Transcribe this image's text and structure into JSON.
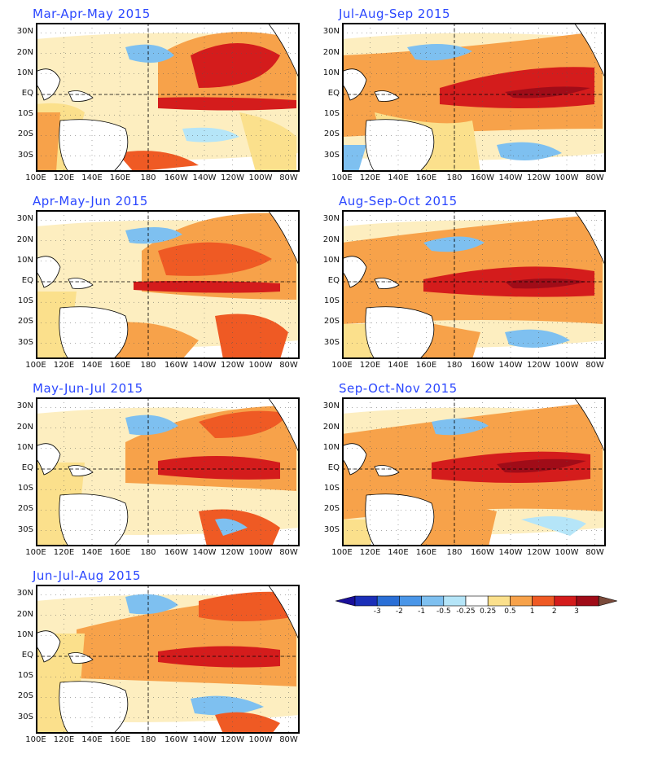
{
  "panels": [
    {
      "title": "Mar-Apr-May 2015"
    },
    {
      "title": "Jul-Aug-Sep 2015"
    },
    {
      "title": "Apr-May-Jun 2015"
    },
    {
      "title": "Aug-Sep-Oct 2015"
    },
    {
      "title": "May-Jun-Jul 2015"
    },
    {
      "title": "Sep-Oct-Nov 2015"
    },
    {
      "title": "Jun-Jul-Aug 2015"
    }
  ],
  "lat_labels": [
    "30N",
    "20N",
    "10N",
    "EQ",
    "10S",
    "20S",
    "30S"
  ],
  "lon_labels": [
    "100E",
    "120E",
    "140E",
    "160E",
    "180",
    "160W",
    "140W",
    "120W",
    "100W",
    "80W"
  ],
  "colorbar": {
    "labels": [
      "-3",
      "-2",
      "-1",
      "-0.5",
      "-0.25",
      "0.25",
      "0.5",
      "1",
      "2",
      "3"
    ],
    "colors": [
      "#1b2fb8",
      "#2a6fd6",
      "#4a96e8",
      "#7ec0f0",
      "#b5e5f8",
      "#ffffff",
      "#fbe08c",
      "#f7a24a",
      "#ef5a24",
      "#d41c1c",
      "#a00c18"
    ],
    "low_end_color": "#1a0f9a",
    "high_end_color": "#7a4a3a"
  },
  "colors": {
    "title": "#2b47ff"
  }
}
